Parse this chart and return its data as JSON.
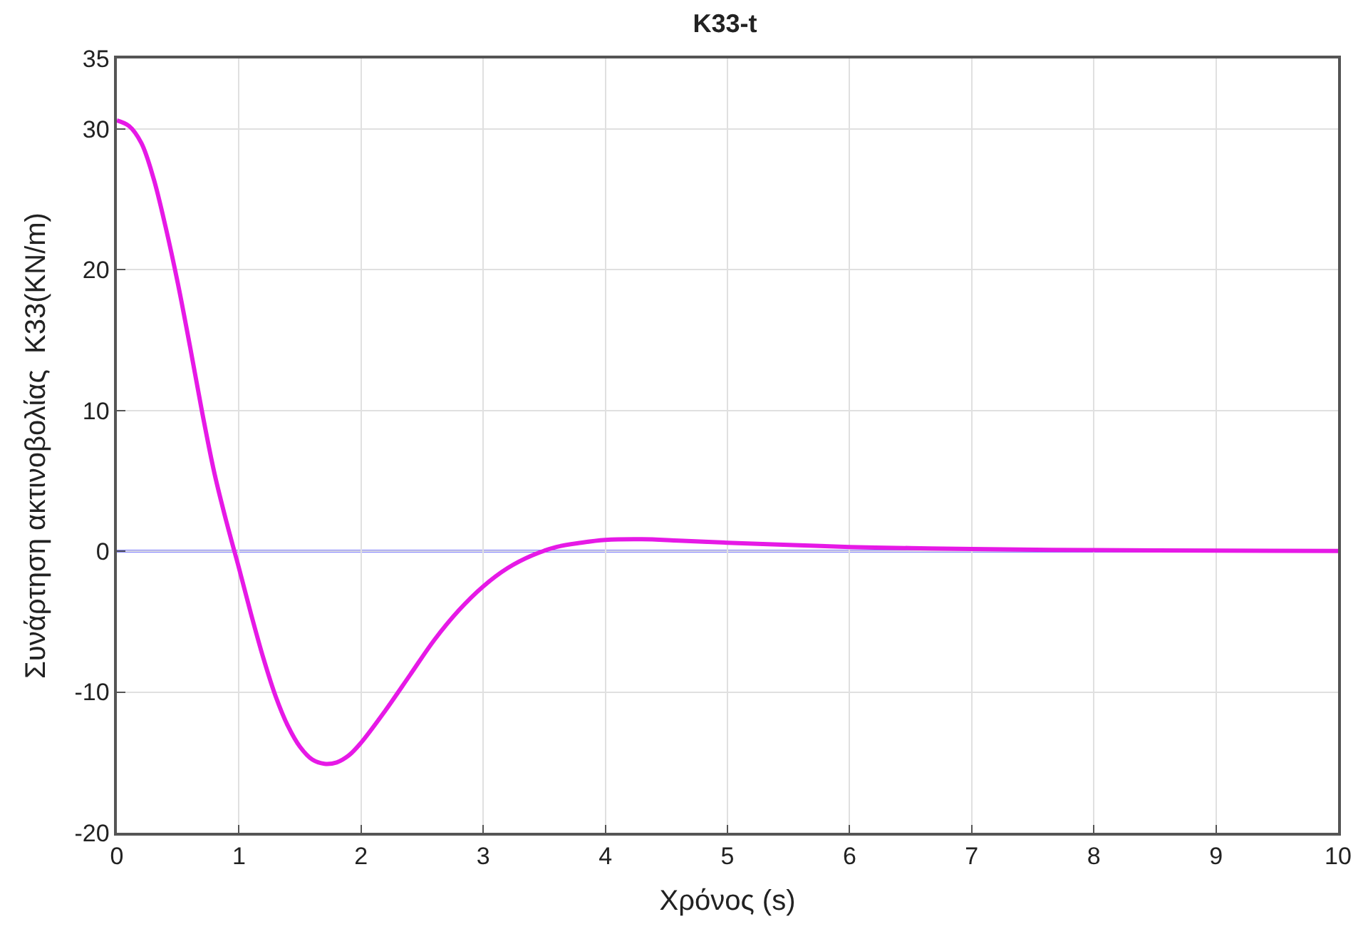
{
  "chart_data": {
    "type": "line",
    "title": "K33-t",
    "xlabel": "Χρόνος (s)",
    "ylabel": "Συνάρτηση ακτινοβολίας  K33(KN/m)",
    "x": [
      0,
      0.1,
      0.2,
      0.3,
      0.4,
      0.5,
      0.6,
      0.7,
      0.8,
      0.9,
      1.0,
      1.1,
      1.2,
      1.3,
      1.4,
      1.5,
      1.6,
      1.7,
      1.8,
      1.9,
      2.0,
      2.2,
      2.4,
      2.6,
      2.8,
      3.0,
      3.2,
      3.4,
      3.6,
      3.8,
      4.0,
      4.3,
      4.6,
      5.0,
      5.5,
      6.0,
      6.5,
      7.0,
      8.0,
      9.0,
      10.0
    ],
    "series": [
      {
        "color": "#e619e6",
        "values": [
          30.6,
          30.2,
          29,
          26.5,
          23,
          19,
          14.5,
          9.8,
          5.5,
          2,
          -1.2,
          -4.5,
          -7.6,
          -10.3,
          -12.4,
          -13.9,
          -14.8,
          -15.1,
          -15.0,
          -14.5,
          -13.6,
          -11.3,
          -8.8,
          -6.3,
          -4.2,
          -2.5,
          -1.2,
          -0.3,
          0.3,
          0.6,
          0.8,
          0.85,
          0.75,
          0.6,
          0.45,
          0.3,
          0.22,
          0.15,
          0.08,
          0.04,
          0.02
        ]
      }
    ],
    "ref_lines": [
      {
        "axis": "y",
        "value": 0,
        "color": "#0000ff"
      }
    ],
    "xlim": [
      0,
      10
    ],
    "xticks": [
      0,
      1,
      2,
      3,
      4,
      5,
      6,
      7,
      8,
      9,
      10
    ],
    "ylim": [
      -20,
      35
    ],
    "yticks": [
      -20,
      -10,
      0,
      10,
      20,
      30,
      35
    ],
    "grid": true,
    "legend": false
  }
}
